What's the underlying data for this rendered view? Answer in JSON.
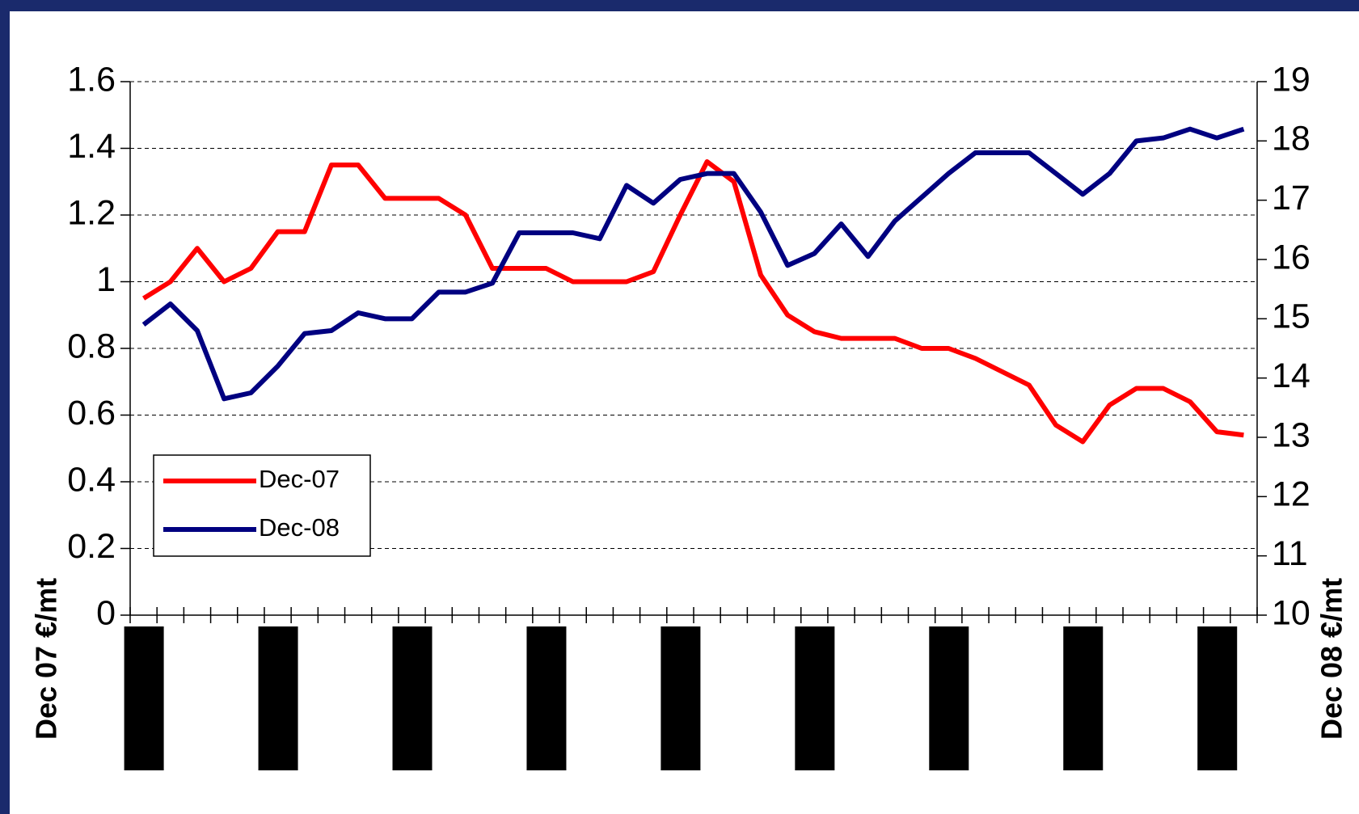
{
  "chart_data": {
    "type": "line",
    "ylabel": "Dec 07 €/mt",
    "y2label": "Dec 08 €/mt",
    "categories": [
      null,
      null,
      null,
      null,
      null,
      null,
      null,
      null,
      null,
      null,
      null,
      null,
      null,
      null,
      null,
      null,
      null,
      null,
      null,
      null,
      null,
      null,
      null,
      null,
      null,
      null,
      null,
      null,
      null,
      null,
      null,
      null,
      null,
      null,
      null,
      null,
      null,
      null,
      null,
      null,
      null,
      null
    ],
    "series": [
      {
        "name": "Dec-07",
        "color": "#ff0000",
        "values": [
          0.95,
          1.0,
          1.1,
          1.0,
          1.04,
          1.15,
          1.15,
          1.35,
          1.35,
          1.25,
          1.25,
          1.25,
          1.2,
          1.04,
          1.04,
          1.04,
          1.0,
          1.0,
          1.0,
          1.03,
          1.2,
          1.36,
          1.3,
          1.02,
          0.9,
          0.85,
          0.83,
          0.83,
          0.83,
          0.8,
          0.8,
          0.77,
          0.73,
          0.69,
          0.57,
          0.52,
          0.63,
          0.68,
          0.68,
          0.64,
          0.55,
          0.54
        ]
      },
      {
        "name": "Dec-08",
        "color": "#000080",
        "axis": "y2",
        "values": [
          14.9,
          15.25,
          14.8,
          13.65,
          13.75,
          14.2,
          14.75,
          14.8,
          15.1,
          15.0,
          15.0,
          15.45,
          15.45,
          15.6,
          16.45,
          16.45,
          16.45,
          16.35,
          17.25,
          16.95,
          17.35,
          17.45,
          17.45,
          16.8,
          15.9,
          16.1,
          16.6,
          16.05,
          16.65,
          17.05,
          17.45,
          17.8,
          17.8,
          17.8,
          17.45,
          17.1,
          17.45,
          18.0,
          18.05,
          18.2,
          18.05,
          18.2
        ]
      }
    ],
    "ylim": [
      0,
      1.6
    ],
    "yticks": [
      0,
      0.2,
      0.4,
      0.6,
      0.8,
      1,
      1.2,
      1.4,
      1.6
    ],
    "y2lim": [
      10,
      19
    ],
    "y2ticks": [
      10,
      11,
      12,
      13,
      14,
      15,
      16,
      17,
      18,
      19
    ],
    "grid": true,
    "legend": "lower-left"
  }
}
